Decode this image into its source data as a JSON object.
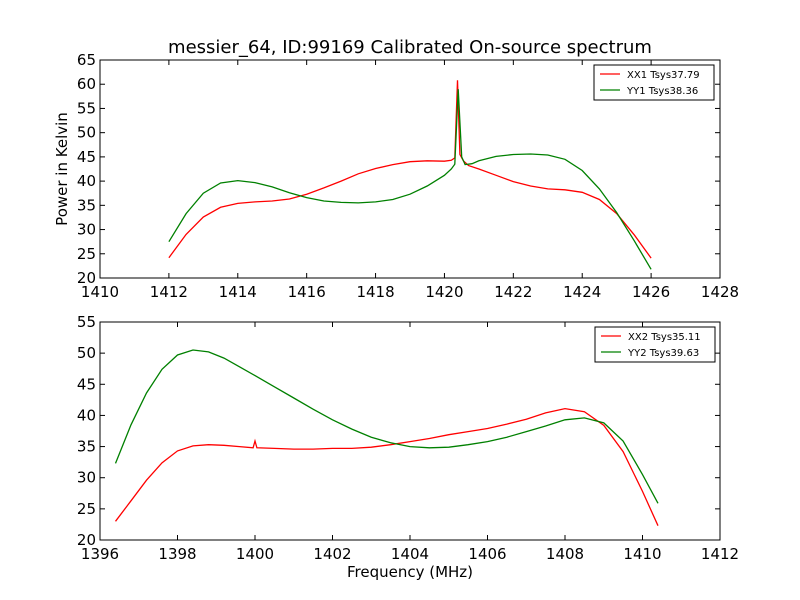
{
  "figure": {
    "title": "messier_64, ID:99169 Calibrated On-source spectrum"
  },
  "colors": {
    "xx": "#ff0000",
    "yy": "#008000"
  },
  "chart_data": [
    {
      "type": "line",
      "title": "messier_64, ID:99169 Calibrated On-source spectrum",
      "xlabel": "",
      "ylabel": "Power in Kelvin",
      "xlim": [
        1410,
        1428
      ],
      "ylim": [
        20,
        65
      ],
      "xticks": [
        1410,
        1412,
        1414,
        1416,
        1418,
        1420,
        1422,
        1424,
        1426,
        1428
      ],
      "yticks": [
        20,
        25,
        30,
        35,
        40,
        45,
        50,
        55,
        60,
        65
      ],
      "grid": false,
      "legend": "top-right",
      "series": [
        {
          "name": "XX1 Tsys37.79",
          "color": "#ff0000",
          "points": [
            [
              1412.0,
              24.2
            ],
            [
              1412.5,
              29.0
            ],
            [
              1413.0,
              32.6
            ],
            [
              1413.5,
              34.6
            ],
            [
              1414.0,
              35.4
            ],
            [
              1414.5,
              35.7
            ],
            [
              1415.0,
              35.9
            ],
            [
              1415.5,
              36.3
            ],
            [
              1416.0,
              37.3
            ],
            [
              1416.5,
              38.6
            ],
            [
              1417.0,
              40.0
            ],
            [
              1417.5,
              41.5
            ],
            [
              1418.0,
              42.6
            ],
            [
              1418.5,
              43.4
            ],
            [
              1419.0,
              44.0
            ],
            [
              1419.5,
              44.2
            ],
            [
              1420.0,
              44.1
            ],
            [
              1420.2,
              44.3
            ],
            [
              1420.3,
              44.8
            ],
            [
              1420.38,
              60.8
            ],
            [
              1420.45,
              45.5
            ],
            [
              1420.55,
              44.2
            ],
            [
              1420.7,
              43.2
            ],
            [
              1421.0,
              42.5
            ],
            [
              1421.5,
              41.2
            ],
            [
              1422.0,
              39.9
            ],
            [
              1422.5,
              39.0
            ],
            [
              1423.0,
              38.4
            ],
            [
              1423.5,
              38.2
            ],
            [
              1424.0,
              37.7
            ],
            [
              1424.5,
              36.2
            ],
            [
              1425.0,
              33.3
            ],
            [
              1425.5,
              29.0
            ],
            [
              1426.0,
              24.1
            ]
          ]
        },
        {
          "name": "YY1 Tsys38.36",
          "color": "#008000",
          "points": [
            [
              1412.0,
              27.5
            ],
            [
              1412.5,
              33.3
            ],
            [
              1413.0,
              37.5
            ],
            [
              1413.5,
              39.6
            ],
            [
              1414.0,
              40.1
            ],
            [
              1414.5,
              39.7
            ],
            [
              1415.0,
              38.8
            ],
            [
              1415.5,
              37.6
            ],
            [
              1416.0,
              36.6
            ],
            [
              1416.5,
              35.9
            ],
            [
              1417.0,
              35.6
            ],
            [
              1417.5,
              35.5
            ],
            [
              1418.0,
              35.7
            ],
            [
              1418.5,
              36.2
            ],
            [
              1419.0,
              37.3
            ],
            [
              1419.5,
              39.0
            ],
            [
              1420.0,
              41.2
            ],
            [
              1420.2,
              42.5
            ],
            [
              1420.3,
              43.5
            ],
            [
              1420.4,
              59.0
            ],
            [
              1420.5,
              45.0
            ],
            [
              1420.6,
              43.4
            ],
            [
              1420.8,
              43.6
            ],
            [
              1421.0,
              44.2
            ],
            [
              1421.5,
              45.1
            ],
            [
              1422.0,
              45.5
            ],
            [
              1422.5,
              45.6
            ],
            [
              1423.0,
              45.4
            ],
            [
              1423.5,
              44.5
            ],
            [
              1424.0,
              42.2
            ],
            [
              1424.5,
              38.4
            ],
            [
              1425.0,
              33.5
            ],
            [
              1425.5,
              27.8
            ],
            [
              1426.0,
              21.8
            ]
          ]
        }
      ]
    },
    {
      "type": "line",
      "title": "",
      "xlabel": "Frequency (MHz)",
      "ylabel": "",
      "xlim": [
        1396,
        1412
      ],
      "ylim": [
        20,
        55
      ],
      "xticks": [
        1396,
        1398,
        1400,
        1402,
        1404,
        1406,
        1408,
        1410,
        1412
      ],
      "yticks": [
        20,
        25,
        30,
        35,
        40,
        45,
        50,
        55
      ],
      "grid": false,
      "legend": "top-right",
      "series": [
        {
          "name": "XX2 Tsys35.11",
          "color": "#ff0000",
          "points": [
            [
              1396.4,
              23.0
            ],
            [
              1396.8,
              26.3
            ],
            [
              1397.2,
              29.6
            ],
            [
              1397.6,
              32.4
            ],
            [
              1398.0,
              34.3
            ],
            [
              1398.4,
              35.1
            ],
            [
              1398.8,
              35.3
            ],
            [
              1399.2,
              35.2
            ],
            [
              1399.6,
              35.0
            ],
            [
              1399.95,
              34.8
            ],
            [
              1400.0,
              35.9
            ],
            [
              1400.05,
              34.8
            ],
            [
              1400.5,
              34.7
            ],
            [
              1401.0,
              34.6
            ],
            [
              1401.5,
              34.6
            ],
            [
              1402.0,
              34.7
            ],
            [
              1402.5,
              34.7
            ],
            [
              1403.0,
              34.9
            ],
            [
              1403.5,
              35.3
            ],
            [
              1404.0,
              35.8
            ],
            [
              1404.5,
              36.3
            ],
            [
              1405.0,
              36.9
            ],
            [
              1405.5,
              37.4
            ],
            [
              1406.0,
              37.9
            ],
            [
              1406.5,
              38.6
            ],
            [
              1407.0,
              39.4
            ],
            [
              1407.5,
              40.4
            ],
            [
              1408.0,
              41.1
            ],
            [
              1408.5,
              40.6
            ],
            [
              1409.0,
              38.4
            ],
            [
              1409.5,
              34.2
            ],
            [
              1410.0,
              27.8
            ],
            [
              1410.4,
              22.3
            ]
          ]
        },
        {
          "name": "YY2 Tsys39.63",
          "color": "#008000",
          "points": [
            [
              1396.4,
              32.3
            ],
            [
              1396.8,
              38.5
            ],
            [
              1397.2,
              43.6
            ],
            [
              1397.6,
              47.4
            ],
            [
              1398.0,
              49.7
            ],
            [
              1398.4,
              50.5
            ],
            [
              1398.8,
              50.2
            ],
            [
              1399.2,
              49.2
            ],
            [
              1399.6,
              47.8
            ],
            [
              1400.0,
              46.4
            ],
            [
              1400.5,
              44.6
            ],
            [
              1401.0,
              42.8
            ],
            [
              1401.5,
              41.0
            ],
            [
              1402.0,
              39.3
            ],
            [
              1402.5,
              37.8
            ],
            [
              1403.0,
              36.5
            ],
            [
              1403.5,
              35.6
            ],
            [
              1404.0,
              35.0
            ],
            [
              1404.5,
              34.8
            ],
            [
              1405.0,
              34.9
            ],
            [
              1405.5,
              35.3
            ],
            [
              1406.0,
              35.8
            ],
            [
              1406.5,
              36.5
            ],
            [
              1407.0,
              37.4
            ],
            [
              1407.5,
              38.3
            ],
            [
              1408.0,
              39.3
            ],
            [
              1408.5,
              39.6
            ],
            [
              1409.0,
              38.8
            ],
            [
              1409.5,
              35.9
            ],
            [
              1410.0,
              30.5
            ],
            [
              1410.4,
              25.9
            ]
          ]
        }
      ]
    }
  ]
}
